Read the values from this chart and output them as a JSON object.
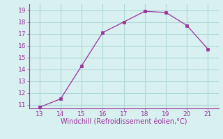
{
  "x": [
    13,
    14,
    15,
    16,
    17,
    18,
    19,
    20,
    21
  ],
  "y": [
    10.8,
    11.5,
    14.3,
    17.1,
    18.0,
    18.9,
    18.8,
    17.7,
    15.7
  ],
  "line_color": "#993399",
  "marker_color": "#993399",
  "background_color": "#d8f0f0",
  "grid_color": "#b0d8d8",
  "xlabel": "Windchill (Refroidissement éolien,°C)",
  "xlabel_color": "#993399",
  "xlim": [
    12.5,
    21.5
  ],
  "ylim": [
    10.7,
    19.5
  ],
  "xticks": [
    13,
    14,
    15,
    16,
    17,
    18,
    19,
    20,
    21
  ],
  "yticks": [
    11,
    12,
    13,
    14,
    15,
    16,
    17,
    18,
    19
  ],
  "tick_color": "#993399",
  "tick_fontsize": 6.5,
  "xlabel_fontsize": 7
}
